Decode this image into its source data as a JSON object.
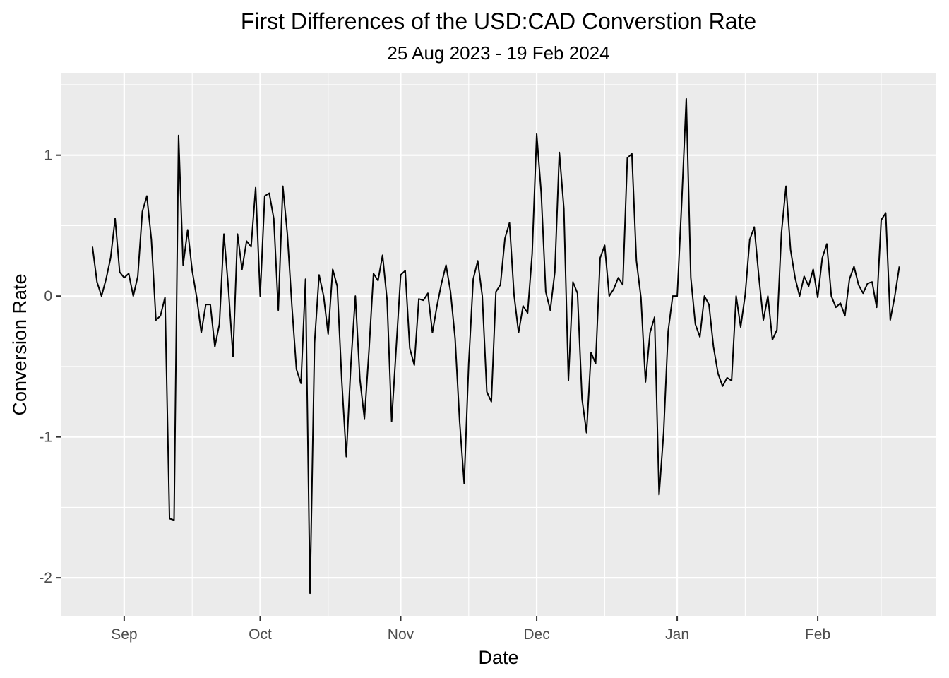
{
  "chart_data": {
    "type": "line",
    "title": "First Differences of the USD:CAD Converstion Rate",
    "subtitle": "25 Aug 2023 - 19 Feb 2024",
    "xlabel": "Date",
    "ylabel": "Conversion Rate",
    "x_start": "2023-08-25",
    "x_end": "2024-02-19",
    "xlim": [
      "2023-08-18",
      "2024-02-27"
    ],
    "ylim": [
      -2.27,
      1.58
    ],
    "x_ticks": [
      {
        "label": "Sep",
        "date": "2023-09-01"
      },
      {
        "label": "Oct",
        "date": "2023-10-01"
      },
      {
        "label": "Nov",
        "date": "2023-11-01"
      },
      {
        "label": "Dec",
        "date": "2023-12-01"
      },
      {
        "label": "Jan",
        "date": "2024-01-01"
      },
      {
        "label": "Feb",
        "date": "2024-02-01"
      }
    ],
    "y_ticks": [
      {
        "label": "1",
        "value": 1
      },
      {
        "label": "0",
        "value": 0
      },
      {
        "label": "-1",
        "value": -1
      },
      {
        "label": "-2",
        "value": -2
      }
    ],
    "grid": true,
    "legend": "none",
    "series": [
      {
        "color": "#000000",
        "points": [
          [
            "2023-08-25",
            0.35
          ],
          [
            "2023-08-26",
            0.1
          ],
          [
            "2023-08-27",
            0.0
          ],
          [
            "2023-08-28",
            0.12
          ],
          [
            "2023-08-29",
            0.27
          ],
          [
            "2023-08-30",
            0.55
          ],
          [
            "2023-08-31",
            0.17
          ],
          [
            "2023-09-01",
            0.13
          ],
          [
            "2023-09-02",
            0.16
          ],
          [
            "2023-09-03",
            0.0
          ],
          [
            "2023-09-04",
            0.14
          ],
          [
            "2023-09-05",
            0.6
          ],
          [
            "2023-09-06",
            0.71
          ],
          [
            "2023-09-07",
            0.4
          ],
          [
            "2023-09-08",
            -0.17
          ],
          [
            "2023-09-09",
            -0.14
          ],
          [
            "2023-09-10",
            -0.01
          ],
          [
            "2023-09-11",
            -1.58
          ],
          [
            "2023-09-12",
            -1.59
          ],
          [
            "2023-09-13",
            1.14
          ],
          [
            "2023-09-14",
            0.22
          ],
          [
            "2023-09-15",
            0.47
          ],
          [
            "2023-09-16",
            0.18
          ],
          [
            "2023-09-17",
            -0.01
          ],
          [
            "2023-09-18",
            -0.26
          ],
          [
            "2023-09-19",
            -0.06
          ],
          [
            "2023-09-20",
            -0.06
          ],
          [
            "2023-09-21",
            -0.36
          ],
          [
            "2023-09-22",
            -0.2
          ],
          [
            "2023-09-23",
            0.44
          ],
          [
            "2023-09-24",
            0.05
          ],
          [
            "2023-09-25",
            -0.43
          ],
          [
            "2023-09-26",
            0.44
          ],
          [
            "2023-09-27",
            0.19
          ],
          [
            "2023-09-28",
            0.39
          ],
          [
            "2023-09-29",
            0.35
          ],
          [
            "2023-09-30",
            0.77
          ],
          [
            "2023-10-01",
            0.0
          ],
          [
            "2023-10-02",
            0.71
          ],
          [
            "2023-10-03",
            0.73
          ],
          [
            "2023-10-04",
            0.55
          ],
          [
            "2023-10-05",
            -0.1
          ],
          [
            "2023-10-06",
            0.78
          ],
          [
            "2023-10-07",
            0.44
          ],
          [
            "2023-10-08",
            -0.07
          ],
          [
            "2023-10-09",
            -0.52
          ],
          [
            "2023-10-10",
            -0.62
          ],
          [
            "2023-10-11",
            0.12
          ],
          [
            "2023-10-12",
            -2.11
          ],
          [
            "2023-10-13",
            -0.33
          ],
          [
            "2023-10-14",
            0.15
          ],
          [
            "2023-10-15",
            0.0
          ],
          [
            "2023-10-16",
            -0.27
          ],
          [
            "2023-10-17",
            0.19
          ],
          [
            "2023-10-18",
            0.07
          ],
          [
            "2023-10-19",
            -0.6
          ],
          [
            "2023-10-20",
            -1.14
          ],
          [
            "2023-10-21",
            -0.49
          ],
          [
            "2023-10-22",
            0.0
          ],
          [
            "2023-10-23",
            -0.59
          ],
          [
            "2023-10-24",
            -0.87
          ],
          [
            "2023-10-25",
            -0.39
          ],
          [
            "2023-10-26",
            0.16
          ],
          [
            "2023-10-27",
            0.11
          ],
          [
            "2023-10-28",
            0.29
          ],
          [
            "2023-10-29",
            -0.03
          ],
          [
            "2023-10-30",
            -0.89
          ],
          [
            "2023-10-31",
            -0.37
          ],
          [
            "2023-11-01",
            0.15
          ],
          [
            "2023-11-02",
            0.18
          ],
          [
            "2023-11-03",
            -0.37
          ],
          [
            "2023-11-04",
            -0.49
          ],
          [
            "2023-11-05",
            -0.02
          ],
          [
            "2023-11-06",
            -0.03
          ],
          [
            "2023-11-07",
            0.02
          ],
          [
            "2023-11-08",
            -0.26
          ],
          [
            "2023-11-09",
            -0.07
          ],
          [
            "2023-11-10",
            0.09
          ],
          [
            "2023-11-11",
            0.22
          ],
          [
            "2023-11-12",
            0.03
          ],
          [
            "2023-11-13",
            -0.3
          ],
          [
            "2023-11-14",
            -0.89
          ],
          [
            "2023-11-15",
            -1.33
          ],
          [
            "2023-11-16",
            -0.48
          ],
          [
            "2023-11-17",
            0.12
          ],
          [
            "2023-11-18",
            0.25
          ],
          [
            "2023-11-19",
            0.0
          ],
          [
            "2023-11-20",
            -0.68
          ],
          [
            "2023-11-21",
            -0.75
          ],
          [
            "2023-11-22",
            0.03
          ],
          [
            "2023-11-23",
            0.08
          ],
          [
            "2023-11-24",
            0.41
          ],
          [
            "2023-11-25",
            0.52
          ],
          [
            "2023-11-26",
            0.01
          ],
          [
            "2023-11-27",
            -0.26
          ],
          [
            "2023-11-28",
            -0.07
          ],
          [
            "2023-11-29",
            -0.12
          ],
          [
            "2023-11-30",
            0.3
          ],
          [
            "2023-12-01",
            1.15
          ],
          [
            "2023-12-02",
            0.73
          ],
          [
            "2023-12-03",
            0.03
          ],
          [
            "2023-12-04",
            -0.1
          ],
          [
            "2023-12-05",
            0.17
          ],
          [
            "2023-12-06",
            1.02
          ],
          [
            "2023-12-07",
            0.62
          ],
          [
            "2023-12-08",
            -0.6
          ],
          [
            "2023-12-09",
            0.1
          ],
          [
            "2023-12-10",
            0.02
          ],
          [
            "2023-12-11",
            -0.73
          ],
          [
            "2023-12-12",
            -0.97
          ],
          [
            "2023-12-13",
            -0.4
          ],
          [
            "2023-12-14",
            -0.48
          ],
          [
            "2023-12-15",
            0.27
          ],
          [
            "2023-12-16",
            0.36
          ],
          [
            "2023-12-17",
            0.0
          ],
          [
            "2023-12-18",
            0.05
          ],
          [
            "2023-12-19",
            0.13
          ],
          [
            "2023-12-20",
            0.08
          ],
          [
            "2023-12-21",
            0.98
          ],
          [
            "2023-12-22",
            1.01
          ],
          [
            "2023-12-23",
            0.25
          ],
          [
            "2023-12-24",
            -0.01
          ],
          [
            "2023-12-25",
            -0.61
          ],
          [
            "2023-12-26",
            -0.26
          ],
          [
            "2023-12-27",
            -0.15
          ],
          [
            "2023-12-28",
            -1.41
          ],
          [
            "2023-12-29",
            -0.97
          ],
          [
            "2023-12-30",
            -0.25
          ],
          [
            "2023-12-31",
            0.0
          ],
          [
            "2024-01-01",
            0.0
          ],
          [
            "2024-01-02",
            0.67
          ],
          [
            "2024-01-03",
            1.4
          ],
          [
            "2024-01-04",
            0.13
          ],
          [
            "2024-01-05",
            -0.2
          ],
          [
            "2024-01-06",
            -0.29
          ],
          [
            "2024-01-07",
            0.0
          ],
          [
            "2024-01-08",
            -0.06
          ],
          [
            "2024-01-09",
            -0.36
          ],
          [
            "2024-01-10",
            -0.55
          ],
          [
            "2024-01-11",
            -0.64
          ],
          [
            "2024-01-12",
            -0.58
          ],
          [
            "2024-01-13",
            -0.6
          ],
          [
            "2024-01-14",
            0.0
          ],
          [
            "2024-01-15",
            -0.22
          ],
          [
            "2024-01-16",
            0.01
          ],
          [
            "2024-01-17",
            0.4
          ],
          [
            "2024-01-18",
            0.49
          ],
          [
            "2024-01-19",
            0.14
          ],
          [
            "2024-01-20",
            -0.17
          ],
          [
            "2024-01-21",
            0.0
          ],
          [
            "2024-01-22",
            -0.31
          ],
          [
            "2024-01-23",
            -0.24
          ],
          [
            "2024-01-24",
            0.45
          ],
          [
            "2024-01-25",
            0.78
          ],
          [
            "2024-01-26",
            0.33
          ],
          [
            "2024-01-27",
            0.13
          ],
          [
            "2024-01-28",
            0.0
          ],
          [
            "2024-01-29",
            0.14
          ],
          [
            "2024-01-30",
            0.07
          ],
          [
            "2024-01-31",
            0.19
          ],
          [
            "2024-02-01",
            -0.01
          ],
          [
            "2024-02-02",
            0.27
          ],
          [
            "2024-02-03",
            0.37
          ],
          [
            "2024-02-04",
            0.0
          ],
          [
            "2024-02-05",
            -0.08
          ],
          [
            "2024-02-06",
            -0.05
          ],
          [
            "2024-02-07",
            -0.14
          ],
          [
            "2024-02-08",
            0.12
          ],
          [
            "2024-02-09",
            0.21
          ],
          [
            "2024-02-10",
            0.08
          ],
          [
            "2024-02-11",
            0.02
          ],
          [
            "2024-02-12",
            0.09
          ],
          [
            "2024-02-13",
            0.1
          ],
          [
            "2024-02-14",
            -0.08
          ],
          [
            "2024-02-15",
            0.54
          ],
          [
            "2024-02-16",
            0.59
          ],
          [
            "2024-02-17",
            -0.17
          ],
          [
            "2024-02-18",
            0.0
          ],
          [
            "2024-02-19",
            0.21
          ]
        ]
      }
    ]
  }
}
